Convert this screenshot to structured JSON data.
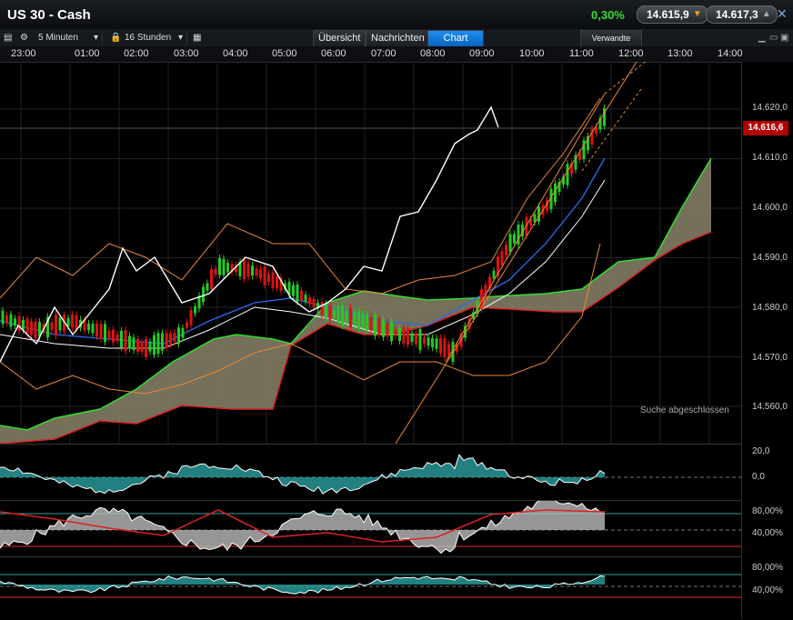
{
  "window": {
    "title": "US 30 - Cash",
    "change": "0,30%",
    "bid": "14.615,9",
    "ask": "14.617,3"
  },
  "toolbar": {
    "interval": "5 Minuten",
    "range": "16 Stunden",
    "tabs": [
      "Übersicht",
      "Nachrichten",
      "Chart"
    ],
    "active_tab": "Chart",
    "related": "Verwandte"
  },
  "time_axis": [
    "23:00",
    "01:00",
    "02:00",
    "03:00",
    "04:00",
    "05:00",
    "06:00",
    "07:00",
    "08:00",
    "09:00",
    "10:00",
    "11:00",
    "12:00",
    "13:00",
    "14:00"
  ],
  "price_axis": [
    "14.620,0",
    "14.610,0",
    "14.600,0",
    "14.590,0",
    "14.580,0",
    "14.570,0",
    "14.560,0"
  ],
  "last_price": "14.616,6",
  "status": "Suche abgeschlossen",
  "indicator_axes": {
    "macd": [
      "20,0",
      "0,0"
    ],
    "stoch1": [
      "80,00%",
      "40,00%"
    ],
    "stoch2": [
      "80,00%",
      "40,00%"
    ]
  },
  "colors": {
    "up": "#22cc22",
    "down": "#dd1111",
    "cloud": "#8a8468",
    "accent": "#1a8cf0"
  }
}
